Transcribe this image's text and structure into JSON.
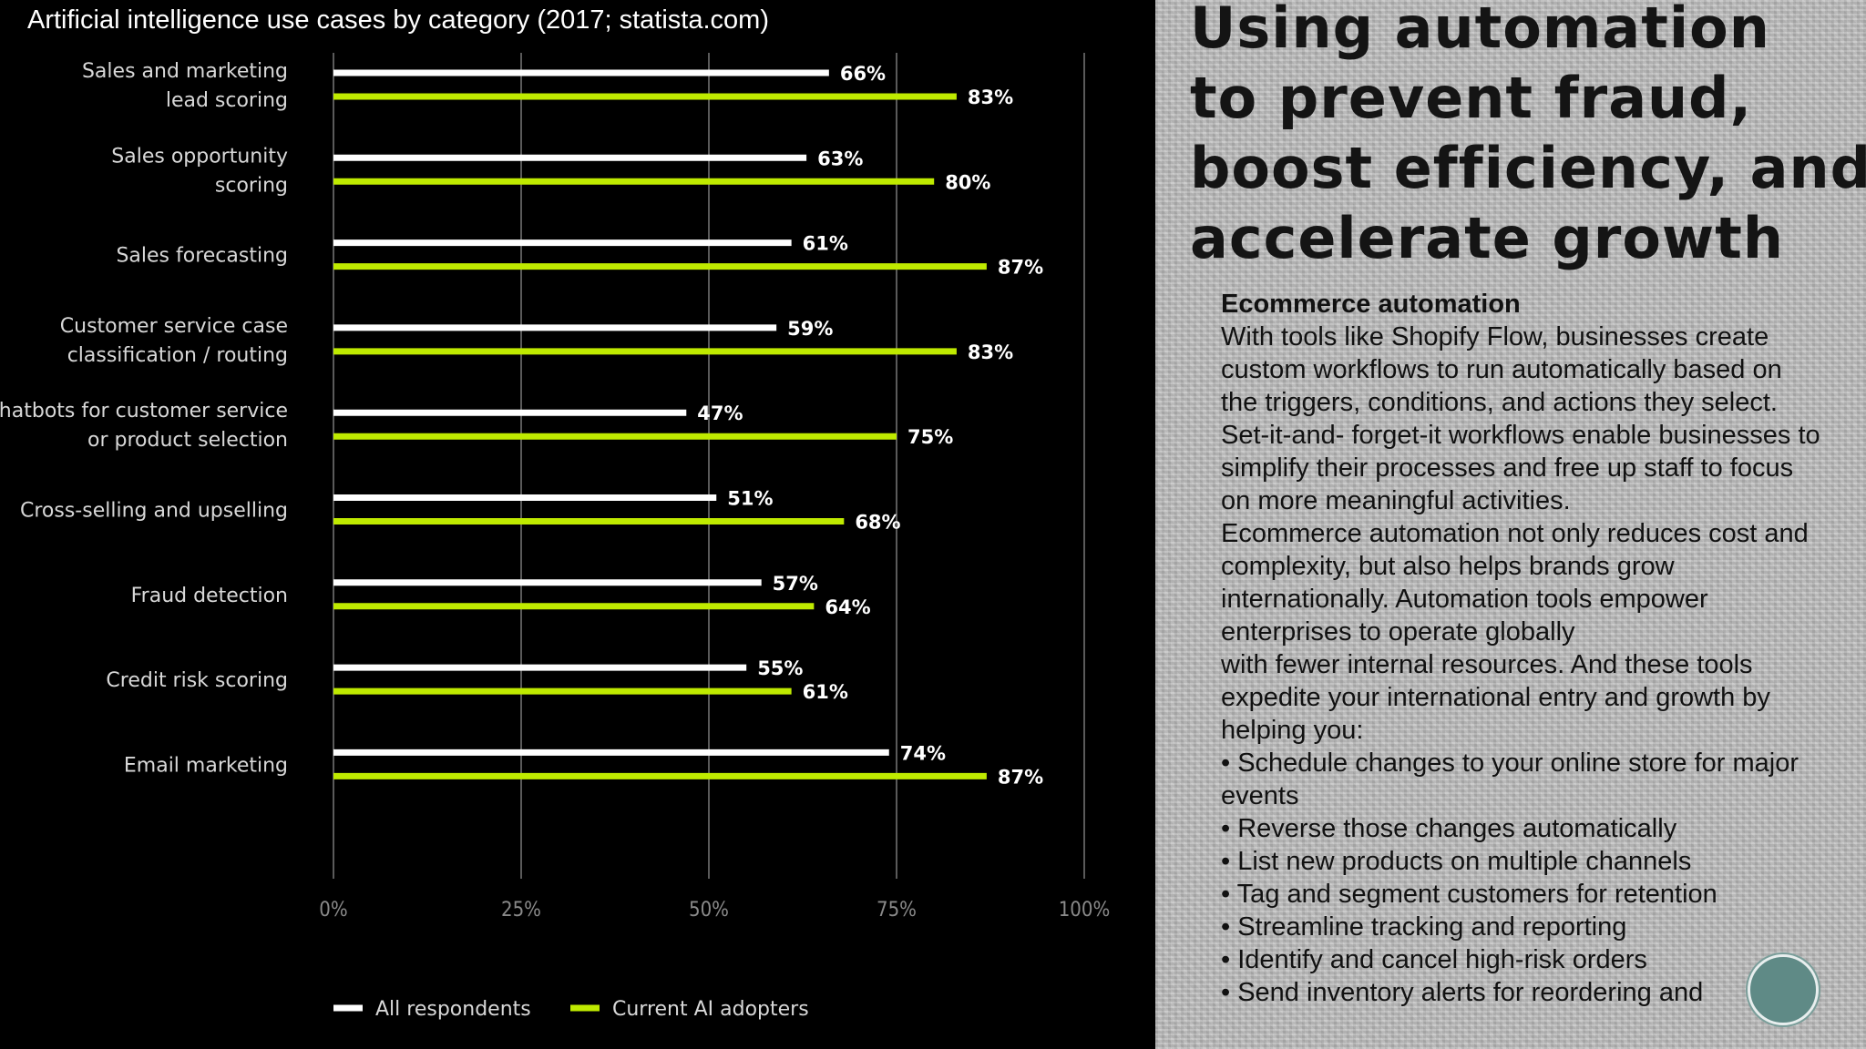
{
  "chart_data": {
    "type": "bar",
    "orientation": "horizontal",
    "title": "Artificial intelligence use cases by category (2017; statista.com)",
    "categories": [
      [
        "Sales and marketing",
        "lead scoring"
      ],
      [
        "Sales opportunity",
        "scoring"
      ],
      [
        "Sales forecasting"
      ],
      [
        "Customer service case",
        "classification / routing"
      ],
      [
        "Chatbots for customer service",
        "or product selection"
      ],
      [
        "Cross-selling and upselling"
      ],
      [
        "Fraud detection"
      ],
      [
        "Credit risk scoring"
      ],
      [
        "Email marketing"
      ]
    ],
    "series": [
      {
        "name": "All respondents",
        "color": "#ffffff",
        "values": [
          66,
          63,
          61,
          59,
          47,
          51,
          57,
          55,
          74
        ],
        "labels": [
          "66%",
          "63%",
          "61%",
          "59%",
          "47%",
          "51%",
          "57%",
          "55%",
          "74%"
        ]
      },
      {
        "name": "Current AI adopters",
        "color": "#bfea00",
        "values": [
          83,
          80,
          87,
          83,
          75,
          68,
          64,
          61,
          87
        ],
        "labels": [
          "83%",
          "80%",
          "87%",
          "83%",
          "75%",
          "68%",
          "64%",
          "61%",
          "87%"
        ]
      }
    ],
    "xlim": [
      0,
      100
    ],
    "xticks": [
      0,
      25,
      50,
      75,
      100
    ],
    "xtick_labels": [
      "0%",
      "25%",
      "50%",
      "75%",
      "100%"
    ],
    "grid": true,
    "legend_position": "bottom-left",
    "xlabel": "",
    "ylabel": ""
  },
  "slide": {
    "headline": [
      "Using automation",
      " to prevent fraud,",
      "boost efficiency, and",
      "accelerate growth"
    ],
    "subhead": "Ecommerce automation",
    "paragraphs": [
      "With tools like Shopify Flow, businesses create custom workflows to run automatically based on the triggers, conditions, and actions they select. Set-it-and- forget-it workflows enable businesses to simplify their processes and free up staff to focus on more meaningful activities.",
      "Ecommerce automation not only reduces cost and complexity, but also helps brands grow internationally.  Automation tools empower enterprises to operate globally",
      "with fewer internal resources. And these tools expedite your international entry and growth by helping you:",
      "• Schedule changes to your online store for major events",
      "• Reverse those changes automatically",
      "• List new products on multiple channels",
      "• Tag and segment customers for retention",
      "• Streamline tracking and reporting",
      "• Identify and cancel high-risk orders",
      "• Send inventory alerts for reordering and"
    ]
  }
}
